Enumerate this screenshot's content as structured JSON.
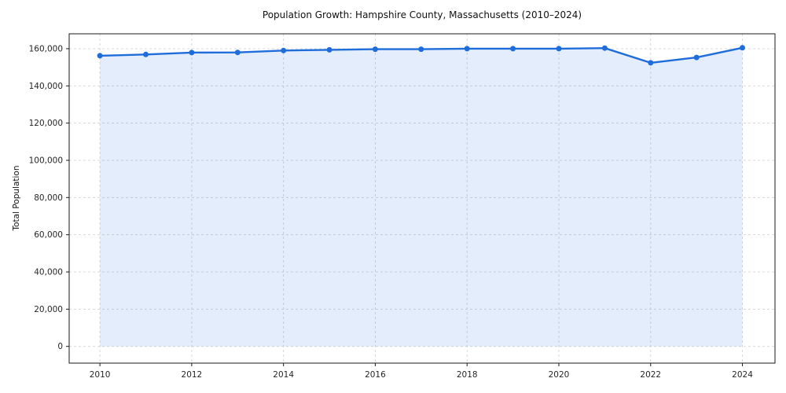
{
  "chart_data": {
    "type": "area",
    "title": "Population Growth: Hampshire County, Massachusetts (2010–2024)",
    "xlabel": "",
    "ylabel": "Total Population",
    "x": [
      2010,
      2011,
      2012,
      2013,
      2014,
      2015,
      2016,
      2017,
      2018,
      2019,
      2020,
      2021,
      2022,
      2023,
      2024
    ],
    "series": [
      {
        "name": "Total Population",
        "values": [
          156200,
          156900,
          157900,
          158000,
          159000,
          159400,
          159700,
          159700,
          160000,
          160000,
          160000,
          160300,
          152400,
          155300,
          160500
        ]
      }
    ],
    "xticks": [
      2010,
      2012,
      2014,
      2016,
      2018,
      2020,
      2022,
      2024
    ],
    "yticks": [
      0,
      20000,
      40000,
      60000,
      80000,
      100000,
      120000,
      140000,
      160000
    ],
    "xlim": [
      2009.33,
      2024.71
    ],
    "ylim": [
      -9000,
      168000
    ],
    "grid": true,
    "grid_style": "dashed",
    "legend": false,
    "marker": "circle",
    "line_color": "#1f6cdb",
    "fill_opacity": 0.12,
    "grid_color": "#d8d8d8",
    "spine_color": "#1a1a1a",
    "tick_label_color": "#262626"
  }
}
